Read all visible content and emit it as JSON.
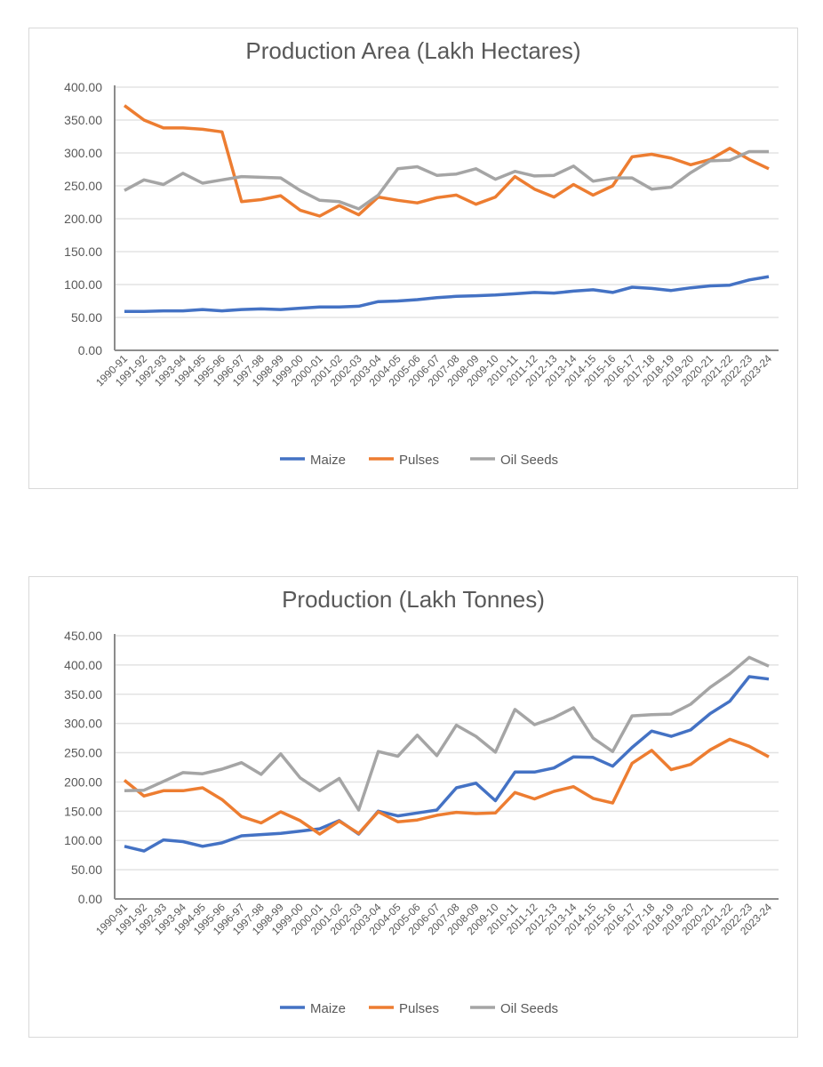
{
  "chart_data": [
    {
      "type": "line",
      "title": "Production Area (Lakh Hectares)",
      "xlabel": "",
      "ylabel": "",
      "ylim": [
        0,
        400
      ],
      "yticks": [
        "0.00",
        "50.00",
        "100.00",
        "150.00",
        "200.00",
        "250.00",
        "300.00",
        "350.00",
        "400.00"
      ],
      "grid": true,
      "legend_position": "bottom",
      "categories": [
        "1990-91",
        "1991-92",
        "1992-93",
        "1993-94",
        "1994-95",
        "1995-96",
        "1996-97",
        "1997-98",
        "1998-99",
        "1999-00",
        "2000-01",
        "2001-02",
        "2002-03",
        "2003-04",
        "2004-05",
        "2005-06",
        "2006-07",
        "2007-08",
        "2008-09",
        "2009-10",
        "2010-11",
        "2011-12",
        "2012-13",
        "2013-14",
        "2014-15",
        "2015-16",
        "2016-17",
        "2017-18",
        "2018-19",
        "2019-20",
        "2020-21",
        "2021-22",
        "2022-23",
        "2023-24"
      ],
      "series": [
        {
          "name": "Maize",
          "color": "#4472c4",
          "values": [
            59,
            59,
            60,
            60,
            62,
            60,
            62,
            63,
            62,
            64,
            66,
            66,
            67,
            74,
            75,
            77,
            80,
            82,
            83,
            84,
            86,
            88,
            87,
            90,
            92,
            88,
            96,
            94,
            91,
            95,
            98,
            99,
            107,
            112
          ]
        },
        {
          "name": "Pulses",
          "color": "#ed7d31",
          "values": [
            372,
            350,
            338,
            338,
            336,
            332,
            226,
            229,
            235,
            213,
            204,
            220,
            206,
            233,
            228,
            224,
            232,
            236,
            222,
            233,
            264,
            245,
            233,
            252,
            236,
            250,
            294,
            298,
            292,
            282,
            290,
            307,
            290,
            276
          ]
        },
        {
          "name": "Oil Seeds",
          "color": "#a5a5a5",
          "values": [
            243,
            259,
            252,
            269,
            254,
            259,
            264,
            263,
            262,
            243,
            228,
            226,
            215,
            236,
            276,
            279,
            266,
            268,
            276,
            260,
            272,
            265,
            266,
            280,
            257,
            262,
            262,
            245,
            248,
            270,
            288,
            289,
            302,
            302
          ]
        }
      ]
    },
    {
      "type": "line",
      "title": "Production (Lakh Tonnes)",
      "xlabel": "",
      "ylabel": "",
      "ylim": [
        0,
        450
      ],
      "yticks": [
        "0.00",
        "50.00",
        "100.00",
        "150.00",
        "200.00",
        "250.00",
        "300.00",
        "350.00",
        "400.00",
        "450.00"
      ],
      "grid": true,
      "legend_position": "bottom",
      "categories": [
        "1990-91",
        "1991-92",
        "1992-93",
        "1993-94",
        "1994-95",
        "1995-96",
        "1996-97",
        "1997-98",
        "1998-99",
        "1999-00",
        "2000-01",
        "2001-02",
        "2002-03",
        "2003-04",
        "2004-05",
        "2005-06",
        "2006-07",
        "2007-08",
        "2008-09",
        "2009-10",
        "2010-11",
        "2011-12",
        "2012-13",
        "2013-14",
        "2014-15",
        "2015-16",
        "2016-17",
        "2017-18",
        "2018-19",
        "2019-20",
        "2020-21",
        "2021-22",
        "2022-23",
        "2023-24"
      ],
      "series": [
        {
          "name": "Maize",
          "color": "#4472c4",
          "values": [
            90,
            82,
            101,
            98,
            90,
            96,
            108,
            110,
            112,
            116,
            120,
            134,
            111,
            150,
            142,
            147,
            152,
            190,
            198,
            168,
            217,
            217,
            224,
            243,
            242,
            227,
            259,
            287,
            278,
            289,
            317,
            338,
            380,
            376
          ]
        },
        {
          "name": "Pulses",
          "color": "#ed7d31",
          "values": [
            203,
            176,
            185,
            185,
            190,
            170,
            141,
            130,
            149,
            134,
            111,
            133,
            112,
            149,
            132,
            135,
            143,
            148,
            146,
            147,
            182,
            171,
            184,
            192,
            172,
            164,
            232,
            254,
            221,
            230,
            255,
            273,
            261,
            243
          ]
        },
        {
          "name": "Oil Seeds",
          "color": "#a5a5a5",
          "values": [
            185,
            186,
            201,
            216,
            214,
            222,
            233,
            213,
            248,
            207,
            185,
            206,
            152,
            252,
            244,
            280,
            245,
            297,
            278,
            251,
            324,
            298,
            310,
            327,
            275,
            252,
            313,
            315,
            316,
            333,
            362,
            385,
            413,
            398
          ]
        }
      ]
    }
  ]
}
